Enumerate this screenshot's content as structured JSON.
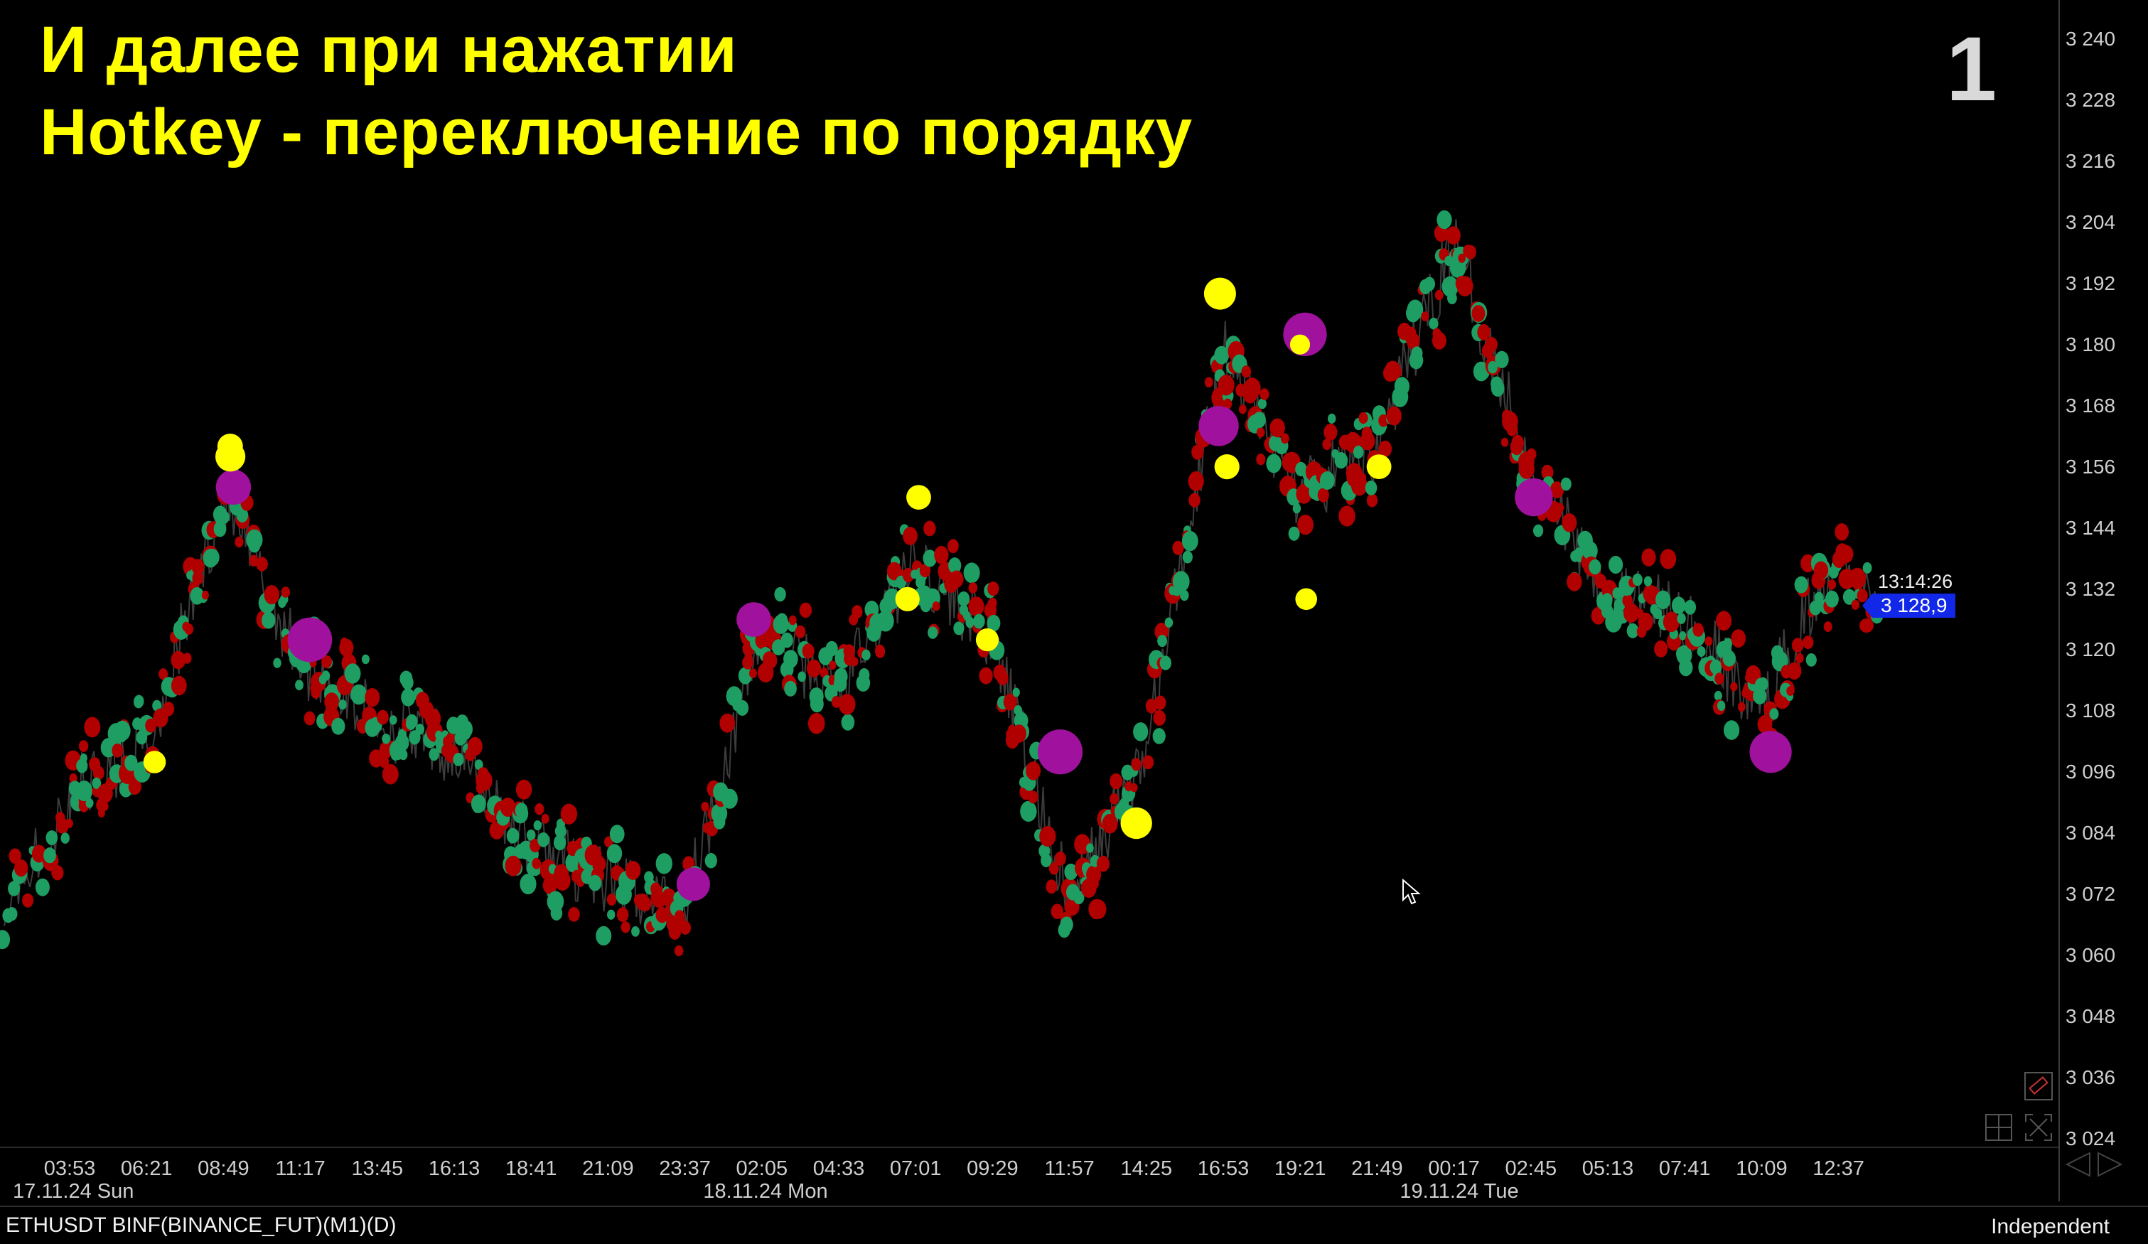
{
  "overlay": {
    "title_line1": "И далее при нажатии",
    "title_line2": "Hotkey - переключение по порядку",
    "page_number": "1"
  },
  "colors": {
    "background": "#000000",
    "title": "#ffff00",
    "buy_cluster": "#1f9e63",
    "sell_cluster": "#b00000",
    "large_trade": "#ffff00",
    "huge_trade": "#a0119e",
    "price_label_bg": "#1228e8"
  },
  "axis": {
    "y_ticks": [
      "3 240",
      "3 228",
      "3 216",
      "3 204",
      "3 192",
      "3 180",
      "3 168",
      "3 156",
      "3 144",
      "3 132",
      "3 120",
      "3 108",
      "3 096",
      "3 084",
      "3 072",
      "3 060",
      "3 048",
      "3 036",
      "3 024"
    ],
    "x_ticks": [
      "03:53",
      "06:21",
      "08:49",
      "11:17",
      "13:45",
      "16:13",
      "18:41",
      "21:09",
      "23:37",
      "02:05",
      "04:33",
      "07:01",
      "09:29",
      "11:57",
      "14:25",
      "16:53",
      "19:21",
      "21:49",
      "00:17",
      "02:45",
      "05:13",
      "07:41",
      "10:09",
      "12:37"
    ],
    "x_dates": [
      "17.11.24 Sun",
      "18.11.24 Mon",
      "19.11.24 Tue"
    ]
  },
  "current": {
    "time": "13:14:26",
    "price": "3 128,9"
  },
  "status_bar": {
    "symbol": "ETHUSDT BINF(BINANCE_FUT)(M1)(D)",
    "mode": "Independent"
  },
  "tools": {
    "ruler": "ruler-icon",
    "grid": "grid-icon",
    "fit": "fit-screen-icon",
    "scroll": "scroll-arrows-icon"
  },
  "chart_data": {
    "type": "scatter",
    "ylim": [
      3024,
      3240
    ],
    "price_path": [
      [
        "03:53",
        3092
      ],
      [
        "06:21",
        3100
      ],
      [
        "08:49",
        3150
      ],
      [
        "11:17",
        3118
      ],
      [
        "13:45",
        3106
      ],
      [
        "16:13",
        3100
      ],
      [
        "18:41",
        3082
      ],
      [
        "21:09",
        3074
      ],
      [
        "23:37",
        3070
      ],
      [
        "02:05",
        3124
      ],
      [
        "04:33",
        3112
      ],
      [
        "07:01",
        3138
      ],
      [
        "09:29",
        3122
      ],
      [
        "11:57",
        3070
      ],
      [
        "14:25",
        3100
      ],
      [
        "16:53",
        3180
      ],
      [
        "19:21",
        3150
      ],
      [
        "21:49",
        3160
      ],
      [
        "00:17",
        3200
      ],
      [
        "02:45",
        3156
      ],
      [
        "05:13",
        3132
      ],
      [
        "07:41",
        3126
      ],
      [
        "10:09",
        3108
      ],
      [
        "12:37",
        3140
      ]
    ],
    "large_trades": [
      {
        "time": "08:49",
        "price": 3158
      },
      {
        "time": "08:49",
        "price": 3160
      },
      {
        "time": "06:21",
        "price": 3098
      },
      {
        "time": "07:01",
        "price": 3150
      },
      {
        "time": "07:01",
        "price": 3130
      },
      {
        "time": "09:29",
        "price": 3122
      },
      {
        "time": "14:25",
        "price": 3086
      },
      {
        "time": "16:53",
        "price": 3156
      },
      {
        "time": "16:53",
        "price": 3190
      },
      {
        "time": "19:21",
        "price": 3130
      },
      {
        "time": "21:49",
        "price": 3156
      },
      {
        "time": "19:21",
        "price": 3180
      }
    ],
    "huge_trades": [
      {
        "time": "08:49",
        "price": 3152
      },
      {
        "time": "11:17",
        "price": 3122
      },
      {
        "time": "02:05",
        "price": 3126
      },
      {
        "time": "11:57",
        "price": 3100
      },
      {
        "time": "16:53",
        "price": 3164
      },
      {
        "time": "19:21",
        "price": 3182
      },
      {
        "time": "02:45",
        "price": 3150
      },
      {
        "time": "10:09",
        "price": 3100
      },
      {
        "time": "23:37",
        "price": 3074
      }
    ]
  }
}
